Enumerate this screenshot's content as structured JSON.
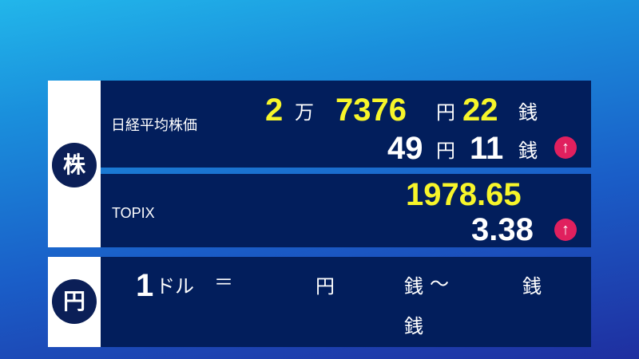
{
  "stocks": {
    "badge": "株",
    "nikkei": {
      "label": "日経平均株価",
      "man": "2",
      "man_unit": "万",
      "yen": "7376",
      "yen_unit": "円",
      "sen": "22",
      "sen_unit": "銭",
      "change_yen": "49",
      "change_yen_unit": "円",
      "change_sen": "11",
      "change_sen_unit": "銭",
      "direction": "up",
      "arrow": "↑"
    },
    "topix": {
      "label": "TOPIX",
      "value": "1978.65",
      "change": "3.38",
      "direction": "up",
      "arrow": "↑"
    }
  },
  "fx": {
    "badge": "円",
    "one": "1",
    "dollar": "ドル",
    "equals": "＝",
    "yen_unit": "円",
    "sen_unit": "銭",
    "tilde": "〜",
    "sen_unit2": "銭",
    "sen_unit3": "銭"
  },
  "colors": {
    "value": "#f7f52a",
    "up": "#e0205e",
    "panel": "#021e5c"
  }
}
